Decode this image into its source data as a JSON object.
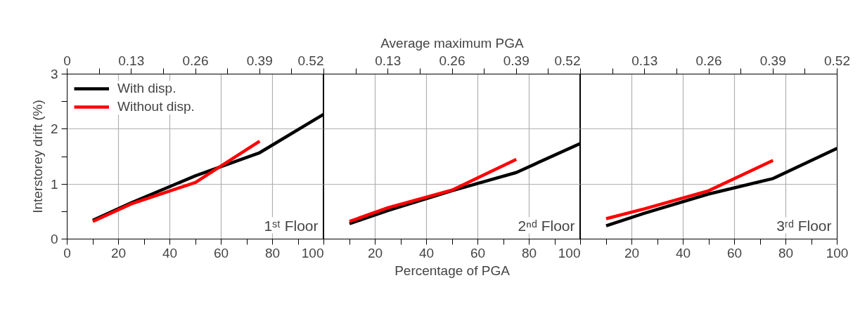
{
  "chart_data": [
    {
      "type": "line",
      "x": [
        10,
        25,
        50,
        75,
        100
      ],
      "series": [
        {
          "name": "With disp.",
          "color": "#000000",
          "values": [
            0.34,
            0.66,
            1.15,
            1.57,
            2.27
          ]
        },
        {
          "name": "Without disp.",
          "color": "#ff0000",
          "x": [
            10,
            25,
            50,
            75
          ],
          "values": [
            0.32,
            0.64,
            1.03,
            1.78
          ]
        }
      ],
      "xlim": [
        0,
        100
      ],
      "xticks": [
        0,
        {
          "value": 10,
          "label": null
        },
        20,
        {
          "value": 30,
          "label": null
        },
        40,
        {
          "value": 50,
          "label": null
        },
        60,
        {
          "value": 70,
          "label": null
        },
        80,
        {
          "value": 90,
          "label": null
        },
        100
      ],
      "x2lim": [
        0,
        0.52
      ],
      "x2ticks": [
        0,
        {
          "value": 0.065,
          "label": null
        },
        0.13,
        {
          "value": 0.195,
          "label": null
        },
        0.26,
        {
          "value": 0.325,
          "label": null
        },
        0.39,
        {
          "value": 0.455,
          "label": null
        },
        0.52
      ],
      "ylim": [
        0,
        3
      ],
      "yticks": [
        0,
        {
          "value": 0.5,
          "label": null
        },
        1,
        {
          "value": 1.5,
          "label": null
        },
        2,
        {
          "value": 2.5,
          "label": null
        },
        3
      ],
      "ylabel": "Interstorey drift (%)",
      "grid": true,
      "legend": "top left",
      "annotations": [
        "1ˢᵗ Floor"
      ]
    },
    {
      "type": "line",
      "x": [
        10,
        25,
        50,
        75,
        100
      ],
      "series": [
        {
          "color": "#000000",
          "values": [
            0.28,
            0.52,
            0.88,
            1.21,
            1.74
          ]
        },
        {
          "color": "#ff0000",
          "x": [
            10,
            25,
            50,
            75
          ],
          "values": [
            0.32,
            0.57,
            0.89,
            1.45
          ]
        }
      ],
      "xlim": [
        0,
        100
      ],
      "xticks": [
        {
          "value": 0,
          "label": null
        },
        {
          "value": 10,
          "label": null
        },
        20,
        {
          "value": 30,
          "label": null
        },
        40,
        {
          "value": 50,
          "label": null
        },
        60,
        {
          "value": 70,
          "label": null
        },
        80,
        {
          "value": 90,
          "label": null
        },
        100
      ],
      "x2lim": [
        0,
        0.52
      ],
      "x2ticks": [
        {
          "value": 0,
          "label": null
        },
        {
          "value": 0.065,
          "label": null
        },
        0.13,
        {
          "value": 0.195,
          "label": null
        },
        0.26,
        {
          "value": 0.325,
          "label": null
        },
        0.39,
        {
          "value": 0.455,
          "label": null
        },
        0.52
      ],
      "ylim": [
        0,
        3
      ],
      "yticks": [
        0,
        1,
        2,
        3
      ],
      "tick_labels": "x",
      "xlabel": "Percentage of PGA",
      "x2label": "Average maximum PGA",
      "grid": true,
      "annotations": [
        "2ⁿᵈ Floor"
      ]
    },
    {
      "type": "line",
      "x": [
        10,
        25,
        50,
        75,
        100
      ],
      "series": [
        {
          "color": "#000000",
          "values": [
            0.24,
            0.47,
            0.82,
            1.1,
            1.65
          ]
        },
        {
          "color": "#ff0000",
          "x": [
            10,
            25,
            50,
            75
          ],
          "values": [
            0.37,
            0.55,
            0.88,
            1.43
          ]
        }
      ],
      "xlim": [
        0,
        100
      ],
      "xticks": [
        {
          "value": 0,
          "label": null
        },
        {
          "value": 10,
          "label": null
        },
        20,
        {
          "value": 30,
          "label": null
        },
        40,
        {
          "value": 50,
          "label": null
        },
        60,
        {
          "value": 70,
          "label": null
        },
        80,
        {
          "value": 90,
          "label": null
        },
        100
      ],
      "x2lim": [
        0,
        0.52
      ],
      "x2ticks": [
        {
          "value": 0,
          "label": null
        },
        {
          "value": 0.065,
          "label": null
        },
        0.13,
        {
          "value": 0.195,
          "label": null
        },
        0.26,
        {
          "value": 0.325,
          "label": null
        },
        0.39,
        {
          "value": 0.455,
          "label": null
        },
        0.52
      ],
      "ylim": [
        0,
        3
      ],
      "yticks": [
        0,
        1,
        2,
        3
      ],
      "tick_labels": "x",
      "grid": true,
      "annotations": [
        "3ʳᵈ Floor"
      ]
    }
  ]
}
